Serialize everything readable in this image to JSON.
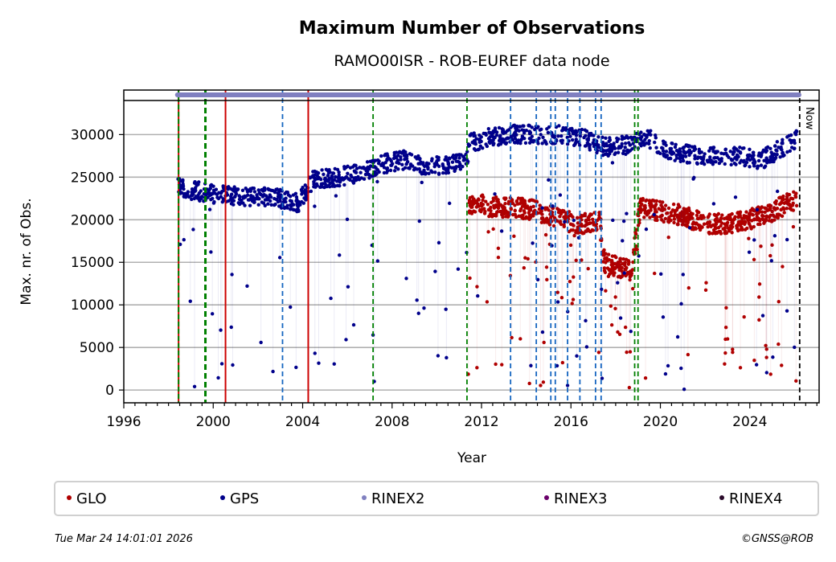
{
  "chart_data": {
    "type": "scatter",
    "title": "Maximum Number of Observations",
    "subtitle": "RAMO00ISR - ROB-EUREF data node",
    "xlabel": "Year",
    "ylabel": "Max. nr. of Obs.",
    "xlim": [
      1996.0,
      2027.1
    ],
    "ylim": [
      -1500,
      34000
    ],
    "x_ticks": [
      1996,
      2000,
      2004,
      2008,
      2012,
      2016,
      2020,
      2024
    ],
    "x_tick_labels": [
      "1996",
      "2000",
      "2004",
      "2008",
      "2012",
      "2016",
      "2020",
      "2024"
    ],
    "y_ticks": [
      0,
      5000,
      10000,
      15000,
      20000,
      25000,
      30000
    ],
    "y_tick_labels": [
      "0",
      "5000",
      "10000",
      "15000",
      "20000",
      "25000",
      "30000"
    ],
    "grid": "horizontal",
    "legend_position": "bottom",
    "now_label": "Now",
    "now_year": 2026.23,
    "rinex_band": {
      "start": 1998.4,
      "end": 2026.2,
      "format": "RINEX2"
    },
    "events": [
      {
        "year": 1998.45,
        "type": "combined-red-green"
      },
      {
        "year": 1999.65,
        "type": "green-dashed-double"
      },
      {
        "year": 2000.55,
        "type": "red-solid"
      },
      {
        "year": 2003.1,
        "type": "blue-dashed"
      },
      {
        "year": 2004.25,
        "type": "red-solid"
      },
      {
        "year": 2007.15,
        "type": "green-dashed"
      },
      {
        "year": 2011.35,
        "type": "green-dashed"
      },
      {
        "year": 2013.3,
        "type": "blue-dashed"
      },
      {
        "year": 2014.45,
        "type": "blue-dashed"
      },
      {
        "year": 2015.1,
        "type": "blue-dashed"
      },
      {
        "year": 2015.3,
        "type": "blue-dashed"
      },
      {
        "year": 2015.85,
        "type": "blue-dashed"
      },
      {
        "year": 2016.4,
        "type": "blue-dashed"
      },
      {
        "year": 2017.1,
        "type": "blue-dashed"
      },
      {
        "year": 2017.35,
        "type": "blue-dashed"
      },
      {
        "year": 2018.85,
        "type": "green-dashed"
      },
      {
        "year": 2019.0,
        "type": "green-dashed"
      }
    ],
    "event_colors": {
      "red": "#cc0000",
      "green": "#008000",
      "blue": "#1565c0"
    },
    "series": [
      {
        "name": "GPS",
        "color": "#00008b",
        "typical_values": [
          {
            "x": 1998.4,
            "y": 23800
          },
          {
            "x": 1999.0,
            "y": 23500
          },
          {
            "x": 2000.0,
            "y": 23000
          },
          {
            "x": 2001.0,
            "y": 22800
          },
          {
            "x": 2002.0,
            "y": 22700
          },
          {
            "x": 2003.0,
            "y": 22500
          },
          {
            "x": 2003.8,
            "y": 22000
          },
          {
            "x": 2004.5,
            "y": 24800
          },
          {
            "x": 2005.5,
            "y": 25000
          },
          {
            "x": 2006.5,
            "y": 25500
          },
          {
            "x": 2007.5,
            "y": 26500
          },
          {
            "x": 2008.5,
            "y": 27000
          },
          {
            "x": 2009.5,
            "y": 26300
          },
          {
            "x": 2010.5,
            "y": 26500
          },
          {
            "x": 2011.3,
            "y": 26800
          },
          {
            "x": 2011.5,
            "y": 29000
          },
          {
            "x": 2012.5,
            "y": 29800
          },
          {
            "x": 2013.5,
            "y": 30000
          },
          {
            "x": 2014.5,
            "y": 30000
          },
          {
            "x": 2015.5,
            "y": 30000
          },
          {
            "x": 2016.5,
            "y": 29700
          },
          {
            "x": 2017.5,
            "y": 28500
          },
          {
            "x": 2018.5,
            "y": 28800
          },
          {
            "x": 2019.5,
            "y": 29500
          },
          {
            "x": 2020.5,
            "y": 28000
          },
          {
            "x": 2021.5,
            "y": 27500
          },
          {
            "x": 2022.5,
            "y": 27500
          },
          {
            "x": 2023.5,
            "y": 27500
          },
          {
            "x": 2024.5,
            "y": 27000
          },
          {
            "x": 2025.5,
            "y": 28500
          },
          {
            "x": 2026.1,
            "y": 29500
          }
        ]
      },
      {
        "name": "GLO",
        "color": "#b00000",
        "typical_values": [
          {
            "x": 2011.4,
            "y": 22000
          },
          {
            "x": 2012.5,
            "y": 21500
          },
          {
            "x": 2013.5,
            "y": 21500
          },
          {
            "x": 2014.5,
            "y": 21000
          },
          {
            "x": 2015.5,
            "y": 20000
          },
          {
            "x": 2016.5,
            "y": 19500
          },
          {
            "x": 2017.3,
            "y": 19800
          },
          {
            "x": 2017.5,
            "y": 15000
          },
          {
            "x": 2018.0,
            "y": 14500
          },
          {
            "x": 2018.7,
            "y": 14000
          },
          {
            "x": 2019.1,
            "y": 21500
          },
          {
            "x": 2020.0,
            "y": 21000
          },
          {
            "x": 2021.0,
            "y": 20500
          },
          {
            "x": 2022.0,
            "y": 19500
          },
          {
            "x": 2023.0,
            "y": 19500
          },
          {
            "x": 2024.0,
            "y": 20000
          },
          {
            "x": 2025.0,
            "y": 21000
          },
          {
            "x": 2026.1,
            "y": 22500
          }
        ]
      }
    ],
    "legend": [
      {
        "label": "GLO",
        "color": "#b00000"
      },
      {
        "label": "GPS",
        "color": "#00008b"
      },
      {
        "label": "RINEX2",
        "color": "#8080c0"
      },
      {
        "label": "RINEX3",
        "color": "#6a006a"
      },
      {
        "label": "RINEX4",
        "color": "#2a0a2a"
      }
    ]
  },
  "footer": {
    "timestamp": "Tue Mar 24 14:01:01 2026",
    "copyright": "©GNSS@ROB"
  }
}
